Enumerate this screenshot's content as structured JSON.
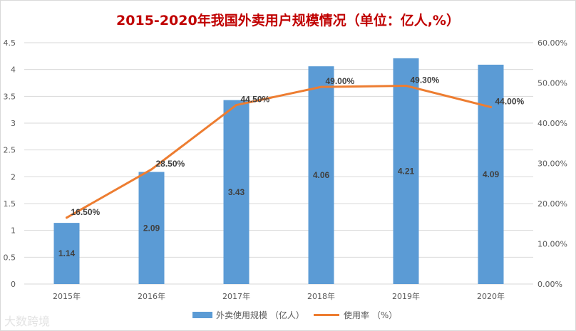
{
  "chart_data": {
    "type": "bar",
    "title": "2015-2020年我国外卖用户规模情况（单位：亿人,%）",
    "categories": [
      "2015年",
      "2016年",
      "2017年",
      "2018年",
      "2019年",
      "2020年"
    ],
    "series": [
      {
        "name": "外卖使用规模 （亿人）",
        "type": "bar",
        "axis": "left",
        "color": "#5b9bd5",
        "values": [
          1.14,
          2.09,
          3.43,
          4.06,
          4.21,
          4.09
        ],
        "labels": [
          "1.14",
          "2.09",
          "3.43",
          "4.06",
          "4.21",
          "4.09"
        ]
      },
      {
        "name": "使用率 （%）",
        "type": "line",
        "axis": "right",
        "color": "#ed7d31",
        "values": [
          16.5,
          28.5,
          44.5,
          49.0,
          49.3,
          44.0
        ],
        "labels": [
          "16.50%",
          "28.50%",
          "44.50%",
          "49.00%",
          "49.30%",
          "44.00%"
        ]
      }
    ],
    "y_left": {
      "min": 0,
      "max": 4.5,
      "ticks": [
        "0",
        "0.5",
        "1",
        "1.5",
        "2",
        "2.5",
        "3",
        "3.5",
        "4",
        "4.5"
      ]
    },
    "y_right": {
      "min": 0,
      "max": 60,
      "ticks": [
        "0.00%",
        "10.00%",
        "20.00%",
        "30.00%",
        "40.00%",
        "50.00%",
        "60.00%"
      ]
    },
    "grid": true,
    "legend": "bottom"
  },
  "watermark": "大数跨境"
}
